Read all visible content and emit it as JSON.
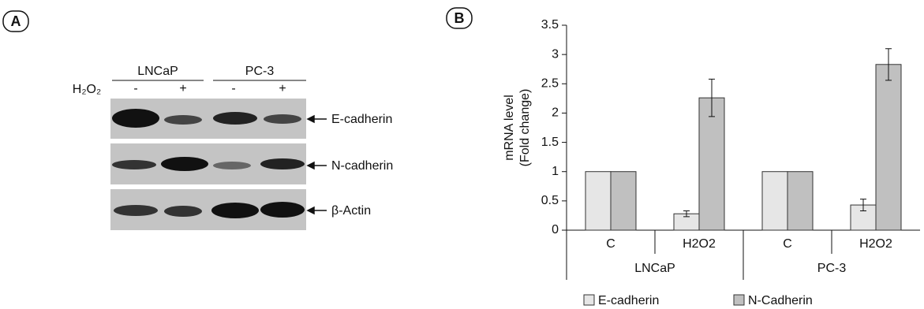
{
  "panel_labels": [
    "A",
    "B"
  ],
  "blot": {
    "treatment_label": "H₂O₂",
    "cell_lines": [
      "LNCaP",
      "PC-3"
    ],
    "lanes": [
      "-",
      "+",
      "-",
      "+"
    ],
    "proteins": [
      "E-cadherin",
      "N-cadherin",
      "β-Actin"
    ]
  },
  "chart_data": {
    "type": "bar",
    "y_label": [
      "mRNA level",
      "(Fold change)"
    ],
    "categories": [
      "C",
      "H2O2",
      "C",
      "H2O2"
    ],
    "groups": [
      "LNCaP",
      "PC-3"
    ],
    "series": [
      {
        "name": "E-cadherin",
        "color": "#e6e6e6",
        "values": [
          1,
          0.28,
          1,
          0.43
        ],
        "errors": [
          null,
          0.05,
          null,
          0.1
        ]
      },
      {
        "name": "N-Cadherin",
        "color": "#c0c0c0",
        "values": [
          1,
          2.26,
          1,
          2.83
        ],
        "errors": [
          null,
          0.32,
          null,
          0.27
        ]
      }
    ],
    "ylim": [
      0,
      3.5
    ],
    "yticks": [
      0,
      0.5,
      1,
      1.5,
      2,
      2.5,
      3,
      3.5
    ]
  }
}
